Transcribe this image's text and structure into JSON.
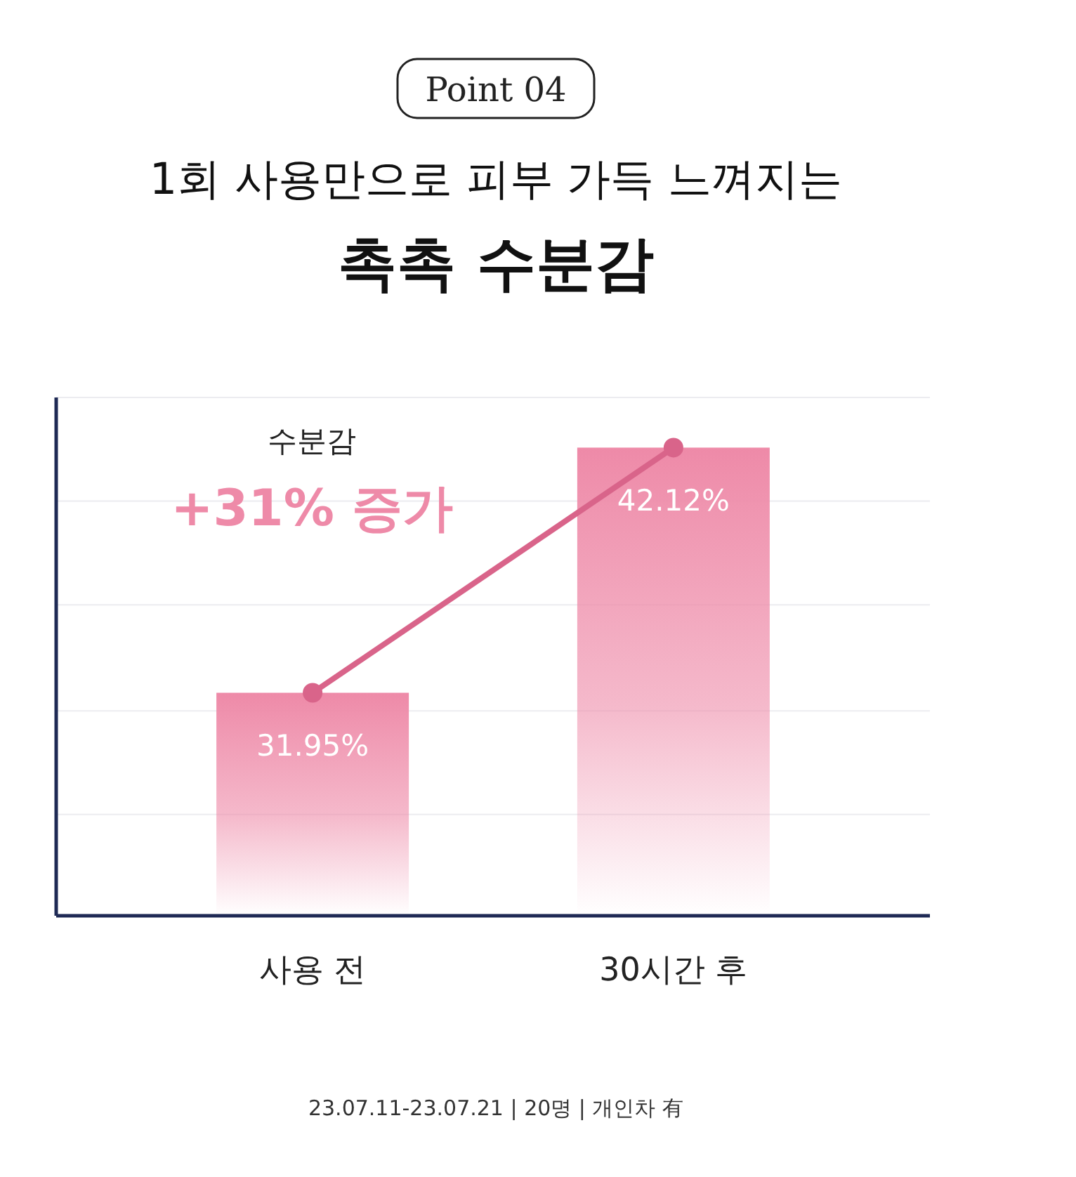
{
  "chart_data": {
    "type": "bar",
    "title": "1회 사용만으로 피부 가득 느껴지는",
    "subtitle": "촉촉 수분감",
    "categories": [
      "사용 전",
      "30시간 후"
    ],
    "series": [
      {
        "color": "#ee8aa8",
        "values": [
          31.95,
          42.12
        ],
        "value_labels": [
          "31.95%",
          "42.12%"
        ]
      },
      {
        "type": "line",
        "color": "#d9648a",
        "values": [
          31.95,
          42.12
        ],
        "marker": "circle"
      }
    ],
    "ylim": [
      22.7,
      44.2
    ],
    "yticks": [
      {
        "value": 26.9,
        "label": null
      },
      {
        "value": 31.2,
        "label": null
      },
      {
        "value": 35.6,
        "label": null
      },
      {
        "value": 39.9,
        "label": null
      },
      {
        "value": 44.2,
        "label": null
      }
    ],
    "grid": "y",
    "tick_labels": "x",
    "annotations": [
      "Point 04",
      "수분감",
      "+31% 증가",
      "23.07.11-23.07.21  |  20명  |  개인차 有"
    ]
  }
}
